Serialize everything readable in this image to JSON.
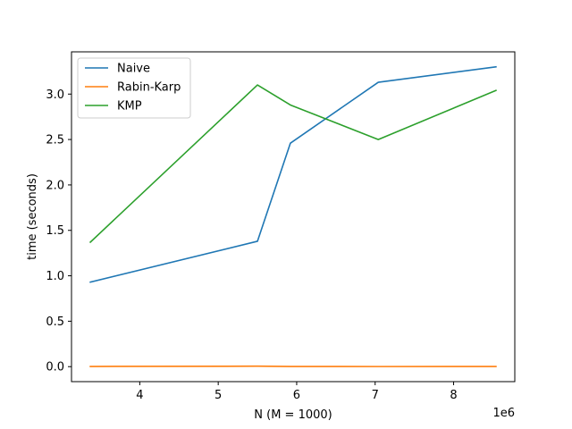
{
  "chart_data": {
    "type": "line",
    "title": "",
    "xlabel": "N (M = 1000)",
    "ylabel": "time (seconds)",
    "x_offset_label": "1e6",
    "x_scale": 1000000,
    "xlim": [
      3.13,
      8.78
    ],
    "ylim": [
      -0.165,
      3.465
    ],
    "xticks": [
      4,
      5,
      6,
      7,
      8
    ],
    "yticks": [
      0.0,
      0.5,
      1.0,
      1.5,
      2.0,
      2.5,
      3.0
    ],
    "ytick_labels": [
      "0.0",
      "0.5",
      "1.0",
      "1.5",
      "2.0",
      "2.5",
      "3.0"
    ],
    "x": [
      3.37,
      5.5,
      5.92,
      7.04,
      8.54
    ],
    "series": [
      {
        "name": "Naive",
        "color": "#1f77b4",
        "values": [
          0.93,
          1.38,
          2.46,
          3.13,
          3.3
        ]
      },
      {
        "name": "Rabin-Karp",
        "color": "#ff7f0e",
        "values": [
          0.002,
          0.005,
          0.002,
          0.001,
          0.002
        ]
      },
      {
        "name": "KMP",
        "color": "#2ca02c",
        "values": [
          1.37,
          3.1,
          2.88,
          2.5,
          3.04
        ]
      }
    ],
    "legend_position": "upper-left",
    "grid": false
  }
}
